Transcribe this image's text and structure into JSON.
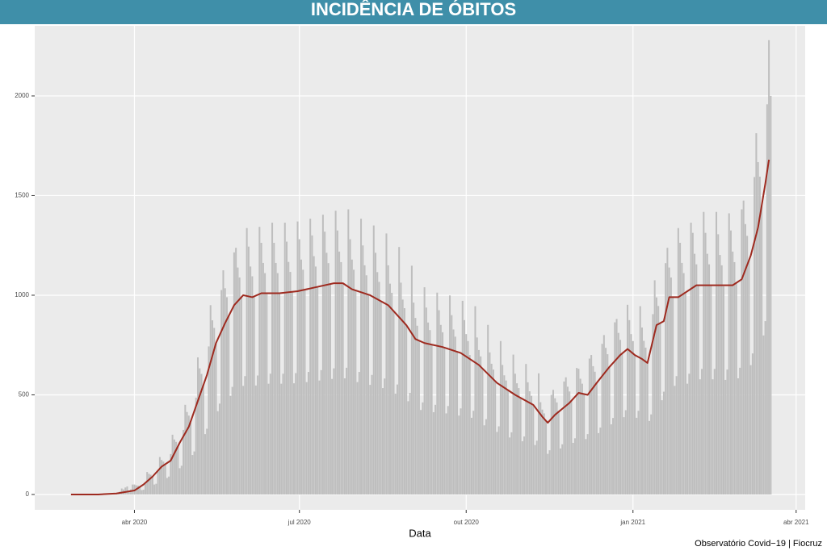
{
  "chart_data": {
    "type": "bar",
    "title": "INCIDÊNCIA DE ÓBITOS",
    "x_label": "Data",
    "caption": "Observatório Covid−19 | Fiocruz",
    "xlim": [
      -55,
      370
    ],
    "xticks": [
      {
        "value": 0,
        "label": "abr 2020"
      },
      {
        "value": 91,
        "label": "jul 2020"
      },
      {
        "value": 183,
        "label": "out 2020"
      },
      {
        "value": 275,
        "label": "jan 2021"
      },
      {
        "value": 365,
        "label": "abr 2021"
      }
    ],
    "ylim": [
      -77,
      2352
    ],
    "yticks": [
      0,
      500,
      1000,
      1500,
      2000
    ],
    "grid": true,
    "series": [
      {
        "type": "bar",
        "color": "#bebebe",
        "x": [
          -35,
          -34,
          -33,
          -32,
          -31,
          -30,
          -29,
          -28,
          -27,
          -26,
          -25,
          -24,
          -23,
          -22,
          -21,
          -20,
          -19,
          -18,
          -17,
          -16,
          -15,
          -14,
          -13,
          -12,
          -11,
          -10,
          -9,
          -8,
          -7,
          -6,
          -5,
          -4,
          -3,
          -2,
          -1,
          0,
          1,
          2,
          3,
          4,
          5,
          6,
          7,
          8,
          9,
          10,
          11,
          12,
          13,
          14,
          15,
          16,
          17,
          18,
          19,
          20,
          21,
          22,
          23,
          24,
          25,
          26,
          27,
          28,
          29,
          30,
          31,
          32,
          33,
          34,
          35,
          36,
          37,
          38,
          39,
          40,
          41,
          42,
          43,
          44,
          45,
          46,
          47,
          48,
          49,
          50,
          51,
          52,
          53,
          54,
          55,
          56,
          57,
          58,
          59,
          60,
          61,
          62,
          63,
          64,
          65,
          66,
          67,
          68,
          69,
          70,
          71,
          72,
          73,
          74,
          75,
          76,
          77,
          78,
          79,
          80,
          81,
          82,
          83,
          84,
          85,
          86,
          87,
          88,
          89,
          90,
          91,
          92,
          93,
          94,
          95,
          96,
          97,
          98,
          99,
          100,
          101,
          102,
          103,
          104,
          105,
          106,
          107,
          108,
          109,
          110,
          111,
          112,
          113,
          114,
          115,
          116,
          117,
          118,
          119,
          120,
          121,
          122,
          123,
          124,
          125,
          126,
          127,
          128,
          129,
          130,
          131,
          132,
          133,
          134,
          135,
          136,
          137,
          138,
          139,
          140,
          141,
          142,
          143,
          144,
          145,
          146,
          147,
          148,
          149,
          150,
          151,
          152,
          153,
          154,
          155,
          156,
          157,
          158,
          159,
          160,
          161,
          162,
          163,
          164,
          165,
          166,
          167,
          168,
          169,
          170,
          171,
          172,
          173,
          174,
          175,
          176,
          177,
          178,
          179,
          180,
          181,
          182,
          183,
          184,
          185,
          186,
          187,
          188,
          189,
          190,
          191,
          192,
          193,
          194,
          195,
          196,
          197,
          198,
          199,
          200,
          201,
          202,
          203,
          204,
          205,
          206,
          207,
          208,
          209,
          210,
          211,
          212,
          213,
          214,
          215,
          216,
          217,
          218,
          219,
          220,
          221,
          222,
          223,
          224,
          225,
          226,
          227,
          228,
          229,
          230,
          231,
          232,
          233,
          234,
          235,
          236,
          237,
          238,
          239,
          240,
          241,
          242,
          243,
          244,
          245,
          246,
          247,
          248,
          249,
          250,
          251,
          252,
          253,
          254,
          255,
          256,
          257,
          258,
          259,
          260,
          261,
          262,
          263,
          264,
          265,
          266,
          267,
          268,
          269,
          270,
          271,
          272,
          273,
          274,
          275,
          276,
          277,
          278,
          279,
          280,
          281,
          282,
          283,
          284,
          285,
          286,
          287,
          288,
          289,
          290,
          291,
          292,
          293,
          294,
          295,
          296,
          297,
          298,
          299,
          300,
          301,
          302,
          303,
          304,
          305,
          306,
          307,
          308,
          309,
          310,
          311,
          312,
          313,
          314,
          315,
          316,
          317,
          318,
          319,
          320,
          321,
          322,
          323,
          324,
          325,
          326,
          327,
          328,
          329,
          330,
          331,
          332,
          333,
          334,
          335,
          336,
          337,
          338,
          339,
          340,
          341,
          342,
          343,
          344,
          345,
          346,
          347,
          348,
          349,
          350,
          351
        ],
        "values": [
          0,
          0,
          0,
          0,
          0,
          0,
          0,
          0,
          0,
          0,
          0,
          0,
          0,
          0,
          0,
          0,
          0,
          0,
          1,
          2,
          3,
          5,
          4,
          8,
          7,
          3,
          10,
          14,
          30,
          25,
          35,
          40,
          20,
          25,
          50,
          50,
          46,
          44,
          40,
          22,
          24,
          54,
          113,
          104,
          99,
          90,
          50,
          54,
          122,
          188,
          173,
          165,
          150,
          83,
          90,
          203,
          300,
          276,
          264,
          240,
          132,
          144,
          324,
          450,
          414,
          396,
          360,
          198,
          216,
          486,
          688,
          633,
          605,
          550,
          303,
          330,
          743,
          950,
          874,
          836,
          760,
          418,
          456,
          1026,
          1125,
          1035,
          990,
          900,
          495,
          540,
          1215,
          1238,
          1139,
          1089,
          990,
          545,
          594,
          1337,
          1244,
          1144,
          1095,
          995,
          547,
          597,
          1343,
          1263,
          1162,
          1111,
          1010,
          556,
          606,
          1364,
          1263,
          1162,
          1111,
          1010,
          556,
          606,
          1364,
          1269,
          1167,
          1117,
          1015,
          558,
          609,
          1370,
          1281,
          1179,
          1128,
          1025,
          564,
          615,
          1384,
          1300,
          1196,
          1144,
          1040,
          572,
          624,
          1404,
          1319,
          1213,
          1161,
          1055,
          580,
          633,
          1424,
          1325,
          1219,
          1166,
          1060,
          583,
          636,
          1431,
          1281,
          1179,
          1128,
          1025,
          564,
          615,
          1384,
          1250,
          1150,
          1100,
          1000,
          550,
          600,
          1350,
          1213,
          1116,
          1067,
          970,
          534,
          582,
          1310,
          1150,
          1058,
          1012,
          920,
          506,
          552,
          1242,
          1063,
          978,
          935,
          850,
          468,
          510,
          1148,
          963,
          886,
          847,
          770,
          424,
          462,
          1040,
          938,
          863,
          825,
          750,
          413,
          450,
          1013,
          925,
          851,
          814,
          740,
          407,
          444,
          999,
          900,
          828,
          792,
          720,
          396,
          432,
          972,
          875,
          805,
          770,
          700,
          385,
          420,
          945,
          788,
          725,
          693,
          630,
          347,
          378,
          851,
          713,
          656,
          627,
          570,
          314,
          342,
          770,
          650,
          598,
          572,
          520,
          286,
          312,
          702,
          606,
          558,
          534,
          485,
          267,
          291,
          655,
          563,
          518,
          495,
          450,
          248,
          270,
          608,
          463,
          426,
          407,
          370,
          204,
          222,
          500,
          525,
          483,
          462,
          420,
          231,
          252,
          567,
          588,
          541,
          517,
          470,
          259,
          282,
          635,
          631,
          581,
          556,
          505,
          278,
          303,
          682,
          700,
          644,
          616,
          560,
          308,
          336,
          756,
          800,
          736,
          704,
          640,
          352,
          384,
          864,
          881,
          811,
          776,
          705,
          388,
          423,
          952,
          875,
          805,
          770,
          700,
          385,
          420,
          945,
          838,
          771,
          737,
          670,
          369,
          402,
          905,
          1075,
          989,
          946,
          860,
          473,
          516,
          1161,
          1238,
          1139,
          1089,
          990,
          545,
          594,
          1337,
          1263,
          1162,
          1111,
          1010,
          556,
          606,
          1364,
          1313,
          1208,
          1155,
          1050,
          578,
          630,
          1418,
          1313,
          1208,
          1155,
          1050,
          578,
          630,
          1418,
          1306,
          1202,
          1150,
          1045,
          575,
          627,
          1411,
          1325,
          1219,
          1166,
          1060,
          583,
          636,
          1431,
          1475,
          1357,
          1298,
          1180,
          649,
          708,
          1593,
          1813,
          1668,
          1595,
          1450,
          798,
          870,
          1958,
          2280,
          2000
        ]
      },
      {
        "type": "line",
        "color": "#9e2a1f",
        "x": [
          -35,
          -20,
          -10,
          0,
          5,
          10,
          15,
          20,
          25,
          30,
          35,
          40,
          45,
          50,
          55,
          60,
          65,
          70,
          80,
          90,
          100,
          110,
          115,
          120,
          130,
          140,
          150,
          155,
          160,
          170,
          180,
          190,
          200,
          210,
          220,
          225,
          228,
          232,
          240,
          245,
          250,
          255,
          262,
          268,
          272,
          276,
          280,
          283,
          288,
          292,
          295,
          300,
          310,
          320,
          330,
          335,
          340,
          344,
          348,
          350
        ],
        "values": [
          0,
          0,
          5,
          20,
          50,
          90,
          140,
          170,
          260,
          340,
          470,
          600,
          760,
          860,
          950,
          1000,
          990,
          1010,
          1010,
          1020,
          1040,
          1060,
          1060,
          1030,
          1000,
          950,
          850,
          780,
          760,
          740,
          710,
          650,
          560,
          500,
          450,
          390,
          360,
          400,
          460,
          510,
          500,
          560,
          640,
          700,
          730,
          700,
          680,
          660,
          850,
          870,
          990,
          990,
          1050,
          1050,
          1050,
          1080,
          1200,
          1340,
          1560,
          1680
        ]
      }
    ]
  }
}
